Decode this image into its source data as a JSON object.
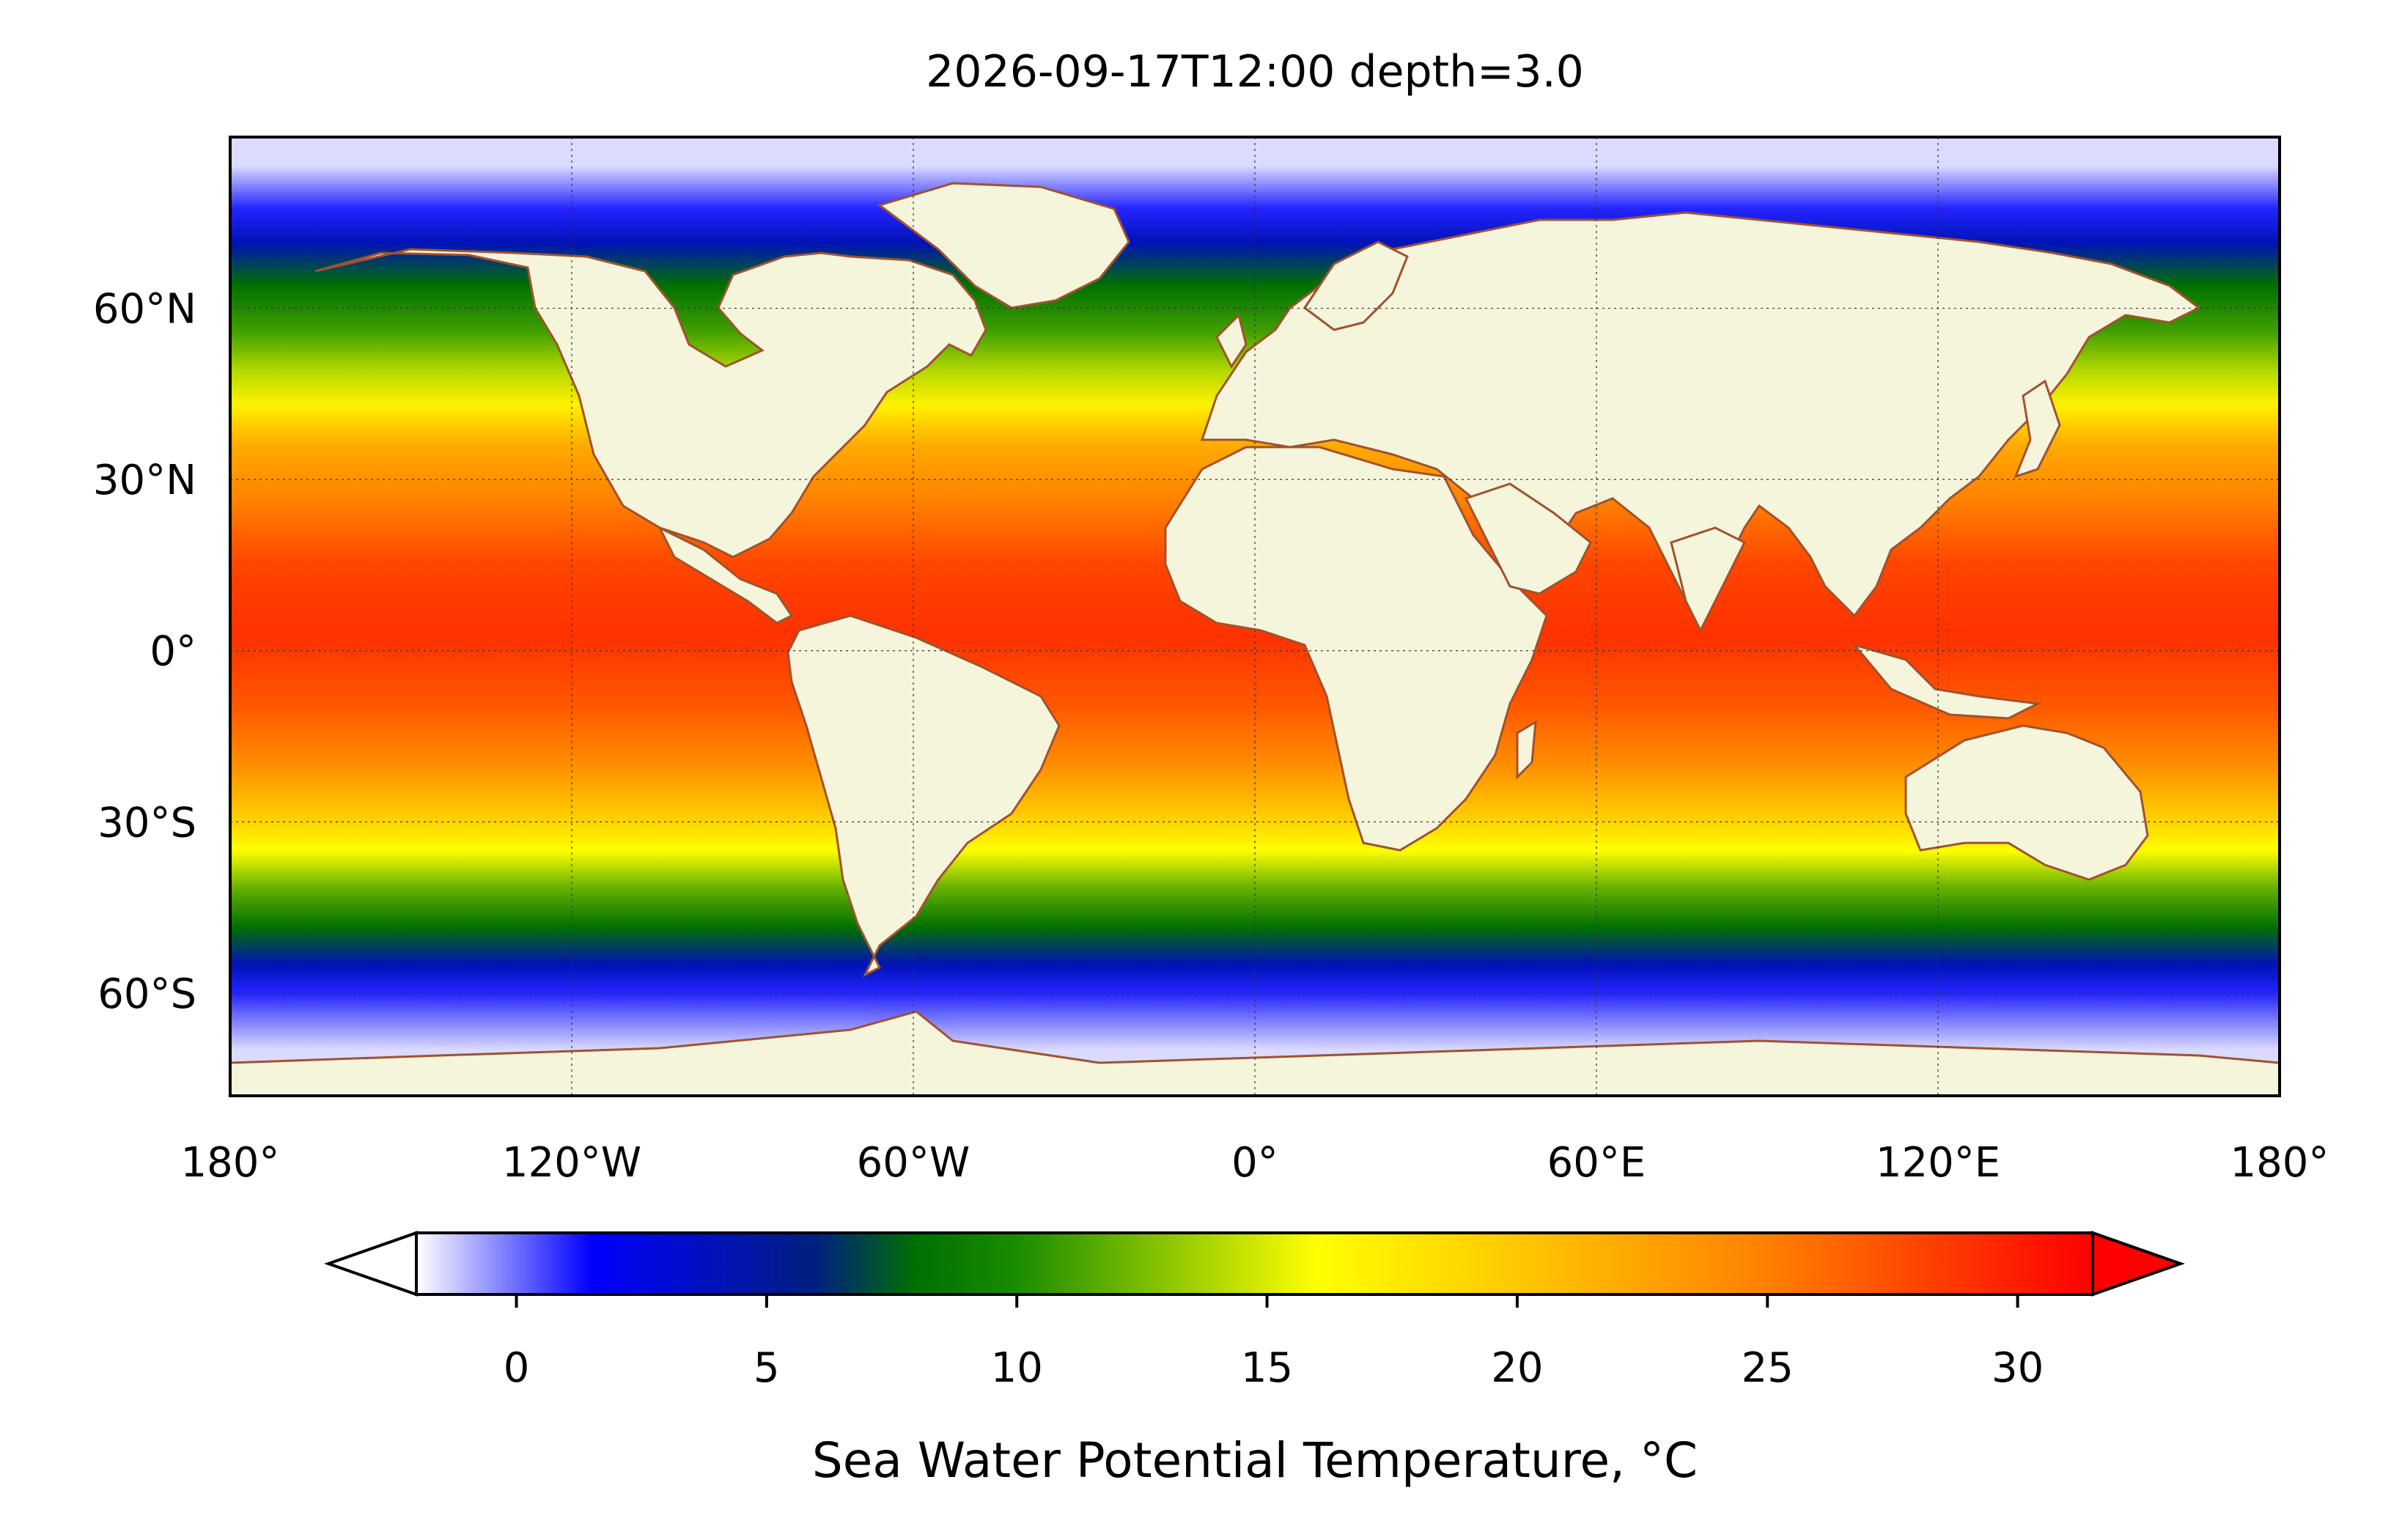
{
  "title": "2026-09-17T12:00 depth=3.0",
  "map": {
    "projection": "PlateCarree",
    "lon_range": [
      -180,
      180
    ],
    "lat_range": [
      -78,
      90
    ],
    "gridlines": true,
    "land_color": "#f5f5dc",
    "coastline_color": "#a0522d",
    "lake_color": "#a6d2e6",
    "lon_ticks": [
      {
        "value": -180,
        "label": "180°"
      },
      {
        "value": -120,
        "label": "120°W"
      },
      {
        "value": -60,
        "label": "60°W"
      },
      {
        "value": 0,
        "label": "0°"
      },
      {
        "value": 60,
        "label": "60°E"
      },
      {
        "value": 120,
        "label": "120°E"
      },
      {
        "value": 180,
        "label": "180°"
      }
    ],
    "lat_ticks": [
      {
        "value": 60,
        "label": "60°N"
      },
      {
        "value": 30,
        "label": "30°N"
      },
      {
        "value": 0,
        "label": "0°"
      },
      {
        "value": -30,
        "label": "30°S"
      },
      {
        "value": -60,
        "label": "60°S"
      }
    ],
    "sst_bands": [
      {
        "lat_north": 90,
        "lat_south": 80,
        "temp": -1.5
      },
      {
        "lat_north": 80,
        "lat_south": 75,
        "temp": 1
      },
      {
        "lat_north": 75,
        "lat_south": 68,
        "temp": 4
      },
      {
        "lat_north": 68,
        "lat_south": 60,
        "temp": 8
      },
      {
        "lat_north": 60,
        "lat_south": 52,
        "temp": 11
      },
      {
        "lat_north": 52,
        "lat_south": 46,
        "temp": 14
      },
      {
        "lat_north": 46,
        "lat_south": 40,
        "temp": 17
      },
      {
        "lat_north": 40,
        "lat_south": 32,
        "temp": 22
      },
      {
        "lat_north": 32,
        "lat_south": 20,
        "temp": 25
      },
      {
        "lat_north": 20,
        "lat_south": 10,
        "temp": 28
      },
      {
        "lat_north": 10,
        "lat_south": -5,
        "temp": 29
      },
      {
        "lat_north": -5,
        "lat_south": -15,
        "temp": 27
      },
      {
        "lat_north": -15,
        "lat_south": -25,
        "temp": 24
      },
      {
        "lat_north": -25,
        "lat_south": -32,
        "temp": 20
      },
      {
        "lat_north": -32,
        "lat_south": -38,
        "temp": 16
      },
      {
        "lat_north": -38,
        "lat_south": -45,
        "temp": 12
      },
      {
        "lat_north": -45,
        "lat_south": -52,
        "temp": 8
      },
      {
        "lat_north": -52,
        "lat_south": -58,
        "temp": 4
      },
      {
        "lat_north": -58,
        "lat_south": -62,
        "temp": 1
      },
      {
        "lat_north": -62,
        "lat_south": -78,
        "temp": -1.5
      }
    ]
  },
  "colorbar": {
    "label": "Sea Water Potential Temperature, $^\\circ$C",
    "label_text": "Sea Water Potential Temperature,",
    "label_unit": "°C",
    "vmin": -2,
    "vmax": 31.5,
    "extend": "both",
    "ticks": [
      {
        "value": 0,
        "label": "0"
      },
      {
        "value": 5,
        "label": "5"
      },
      {
        "value": 10,
        "label": "10"
      },
      {
        "value": 15,
        "label": "15"
      },
      {
        "value": 20,
        "label": "20"
      },
      {
        "value": 25,
        "label": "25"
      },
      {
        "value": 30,
        "label": "30"
      }
    ],
    "colormap": [
      {
        "value": -2,
        "color": "#ffffff"
      },
      {
        "value": 1.5,
        "color": "#0000ff"
      },
      {
        "value": 6,
        "color": "#00207f"
      },
      {
        "value": 8,
        "color": "#007000"
      },
      {
        "value": 10,
        "color": "#1a8c00"
      },
      {
        "value": 16,
        "color": "#ffff00"
      },
      {
        "value": 20,
        "color": "#ffc800"
      },
      {
        "value": 25,
        "color": "#ff8000"
      },
      {
        "value": 31.5,
        "color": "#ff0000"
      }
    ]
  }
}
